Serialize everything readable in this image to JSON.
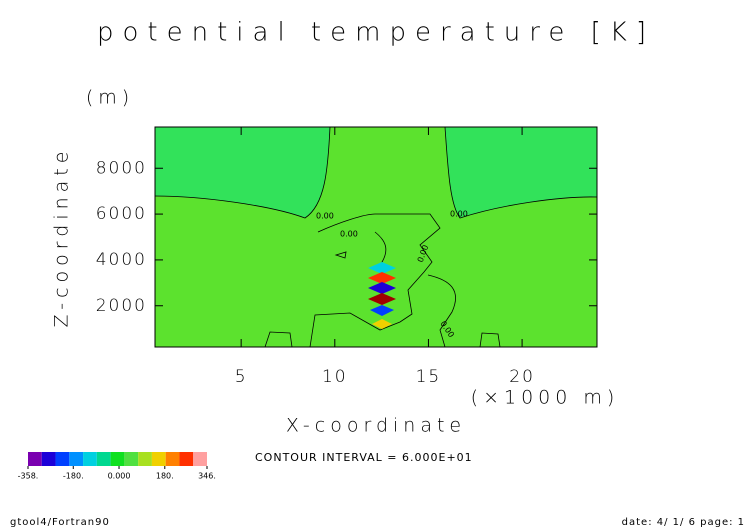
{
  "chart_data": {
    "type": "contour",
    "title": "potential temperature [K]",
    "x_label": "X-coordinate",
    "x_unit": "(×1000 m)",
    "y_label": "Z-coordinate",
    "y_unit": "(m)",
    "xlim": [
      0.4,
      24
    ],
    "ylim": [
      200,
      9800
    ],
    "xticks": [
      5,
      10,
      15,
      20
    ],
    "yticks": [
      2000,
      4000,
      6000,
      8000
    ],
    "contour_labels": [
      "0.00",
      "0.00",
      "0.00",
      "0.00",
      "0.00"
    ],
    "colorbar": {
      "lim": [
        -358,
        346
      ],
      "colors": [
        "#7a00b0",
        "#1c00d8",
        "#0040ff",
        "#0090ff",
        "#00d0e0",
        "#00d890",
        "#10e020",
        "#50e040",
        "#a8e020",
        "#f0d000",
        "#ff8000",
        "#ff3000",
        "#ffa0a0"
      ],
      "ticks": [
        {
          "value": -358,
          "label": "-358."
        },
        {
          "value": -180,
          "label": "-180."
        },
        {
          "value": 0,
          "label": "0.000"
        },
        {
          "value": 180,
          "label": "180."
        },
        {
          "value": 346,
          "label": "346."
        }
      ]
    },
    "contour_interval": "CONTOUR INTERVAL = 6.000E+01",
    "footer_left": "gtool4/Fortran90",
    "footer_right": "date: 4/ 1/ 6 page: 1"
  }
}
